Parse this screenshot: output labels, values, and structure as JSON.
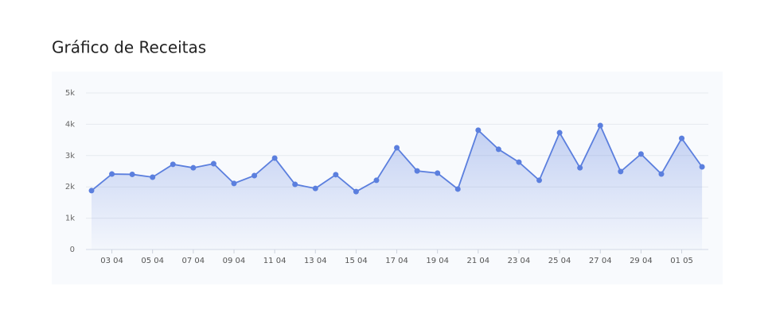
{
  "chart_data": {
    "type": "area",
    "title": "Gráfico de Receitas",
    "categories": [
      null,
      "03 04",
      null,
      "05 04",
      null,
      "07 04",
      null,
      "09 04",
      null,
      "11 04",
      null,
      "13 04",
      null,
      "15 04",
      null,
      "17 04",
      null,
      "19 04",
      null,
      "21 04",
      null,
      "23 04",
      null,
      "25 04",
      null,
      "27 04",
      null,
      "29 04",
      null,
      "01 05",
      null
    ],
    "values": [
      1880,
      2410,
      2400,
      2310,
      2720,
      2610,
      2740,
      2110,
      2360,
      2920,
      2080,
      1950,
      2390,
      1850,
      2210,
      3250,
      2510,
      2440,
      1930,
      3810,
      3200,
      2790,
      2210,
      3730,
      2610,
      3960,
      2490,
      3050,
      2410,
      3550,
      2640
    ],
    "color": "#5b7fde",
    "ylim": [
      0,
      5000
    ],
    "yticks": [
      0,
      {
        "value": 1000,
        "label": "1k"
      },
      {
        "value": 2000,
        "label": "2k"
      },
      {
        "value": 3000,
        "label": "3k"
      },
      {
        "value": 4000,
        "label": "4k"
      },
      {
        "value": 5000,
        "label": "5k"
      }
    ],
    "grid": true
  }
}
